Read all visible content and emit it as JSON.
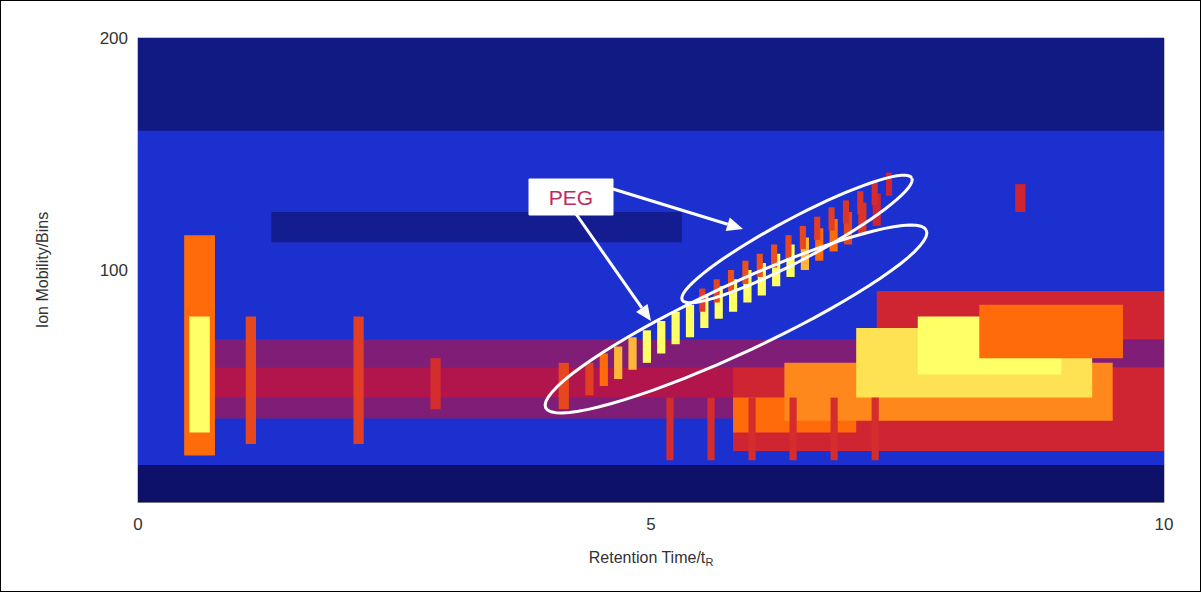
{
  "chart_data": {
    "type": "heatmap",
    "x_label": "Retention Time/tR",
    "y_label": "Ion Mobility/Bins",
    "xlim": [
      0,
      10
    ],
    "ylim": [
      0,
      200
    ],
    "xticks": [
      0,
      5,
      10
    ],
    "yticks": [
      100,
      200
    ],
    "grid": false,
    "zlim": [
      0,
      4
    ],
    "cells": [
      [
        0,
        10,
        0,
        200,
        1
      ],
      [
        0,
        10,
        160,
        200,
        0.4
      ],
      [
        1.3,
        5.3,
        112,
        125,
        0.5
      ],
      [
        0,
        10,
        0,
        16,
        0.2
      ],
      [
        0.5,
        10,
        36,
        70,
        1.6
      ],
      [
        0.5,
        10,
        45,
        58,
        1.9
      ],
      [
        0.45,
        0.75,
        20,
        115,
        3
      ],
      [
        0.5,
        0.7,
        30,
        80,
        4
      ],
      [
        1.05,
        1.15,
        25,
        80,
        2.6
      ],
      [
        2.1,
        2.2,
        25,
        80,
        2.5
      ],
      [
        2.85,
        2.95,
        40,
        62,
        2.3
      ],
      [
        4.1,
        4.2,
        40,
        60,
        2.6
      ],
      [
        5.8,
        10,
        22,
        58,
        2.2
      ],
      [
        7.2,
        10,
        70,
        91,
        2.2
      ],
      [
        5.8,
        7.0,
        30,
        45,
        3
      ],
      [
        6.3,
        9.5,
        35,
        60,
        3.2
      ],
      [
        7.0,
        9.3,
        45,
        75,
        3.8
      ],
      [
        7.6,
        9.0,
        55,
        80,
        4
      ],
      [
        8.2,
        9.6,
        62,
        85,
        3
      ],
      [
        5.15,
        5.22,
        18,
        45,
        2.3
      ],
      [
        5.55,
        5.62,
        18,
        45,
        2.3
      ],
      [
        5.95,
        6.02,
        18,
        45,
        2.3
      ],
      [
        6.35,
        6.42,
        18,
        45,
        2.3
      ],
      [
        6.75,
        6.82,
        18,
        45,
        2.3
      ],
      [
        7.15,
        7.22,
        18,
        45,
        2.3
      ],
      [
        8.55,
        8.65,
        125,
        137,
        2.2
      ],
      [
        4.36,
        4.44,
        46,
        60,
        2.5
      ],
      [
        4.5,
        4.58,
        50,
        64,
        3
      ],
      [
        4.64,
        4.72,
        53,
        67,
        3.5
      ],
      [
        4.78,
        4.86,
        57,
        71,
        3.5
      ],
      [
        4.92,
        5.0,
        60,
        74,
        4
      ],
      [
        5.06,
        5.14,
        64,
        78,
        4
      ],
      [
        5.2,
        5.28,
        68,
        82,
        4
      ],
      [
        5.34,
        5.42,
        71,
        85,
        4
      ],
      [
        5.48,
        5.56,
        75,
        89,
        4
      ],
      [
        5.62,
        5.7,
        79,
        93,
        4
      ],
      [
        5.76,
        5.84,
        82,
        96,
        4
      ],
      [
        5.9,
        5.98,
        86,
        100,
        4
      ],
      [
        6.04,
        6.12,
        89,
        103,
        4
      ],
      [
        6.18,
        6.26,
        93,
        107,
        4
      ],
      [
        6.32,
        6.4,
        97,
        111,
        4
      ],
      [
        6.46,
        6.54,
        100,
        114,
        3.5
      ],
      [
        6.6,
        6.68,
        104,
        118,
        3
      ],
      [
        6.74,
        6.82,
        108,
        122,
        3
      ],
      [
        6.88,
        6.96,
        111,
        125,
        2.6
      ],
      [
        7.02,
        7.1,
        115,
        129,
        2.4
      ],
      [
        7.16,
        7.24,
        119,
        133,
        2.2
      ],
      [
        5.47,
        5.53,
        82,
        92,
        2.5
      ],
      [
        5.61,
        5.67,
        86,
        96,
        2.6
      ],
      [
        5.75,
        5.81,
        90,
        100,
        2.7
      ],
      [
        5.89,
        5.95,
        94,
        104,
        2.7
      ],
      [
        6.03,
        6.09,
        97,
        107,
        2.7
      ],
      [
        6.17,
        6.23,
        101,
        111,
        2.7
      ],
      [
        6.31,
        6.37,
        105,
        115,
        2.6
      ],
      [
        6.45,
        6.51,
        109,
        119,
        2.6
      ],
      [
        6.59,
        6.65,
        113,
        123,
        2.5
      ],
      [
        6.73,
        6.79,
        117,
        127,
        2.5
      ],
      [
        6.87,
        6.93,
        120,
        130,
        2.4
      ],
      [
        7.01,
        7.07,
        124,
        134,
        2.4
      ],
      [
        7.15,
        7.21,
        128,
        138,
        2.3
      ],
      [
        7.29,
        7.35,
        132,
        142,
        2.2
      ]
    ],
    "annotations": [
      {
        "text": "PEG"
      }
    ]
  }
}
